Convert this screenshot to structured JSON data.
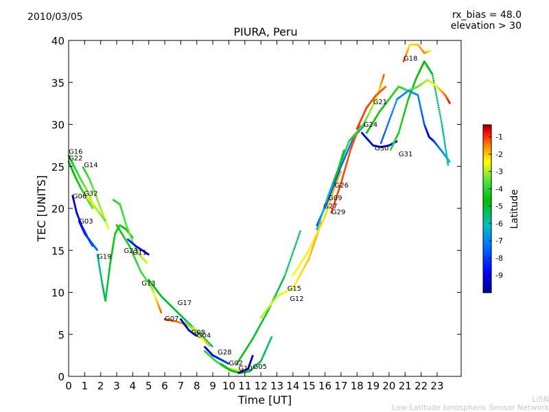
{
  "header": {
    "date": "2010/03/05",
    "params": [
      "rx_bias = 48.0",
      "elevation > 30"
    ]
  },
  "footer": {
    "lines": [
      "LISN",
      "Low-Latitude Ionospheric Sensor Network"
    ]
  },
  "colors": {
    "colormap": [
      "#00008f",
      "#0000ff",
      "#0080ff",
      "#00c0c0",
      "#00c000",
      "#40e040",
      "#ffff00",
      "#ff8000",
      "#ff0000",
      "#800000"
    ]
  },
  "chart_data": {
    "type": "scatter",
    "title": "PIURA, Peru",
    "xlabel": "Time [UT]",
    "ylabel": "TEC [UNITS]",
    "xlim": [
      0,
      24.5
    ],
    "ylim": [
      0,
      40
    ],
    "xticks": [
      "0",
      "1",
      "2",
      "3",
      "4",
      "5",
      "6",
      "7",
      "8",
      "9",
      "10",
      "11",
      "12",
      "13",
      "14",
      "15",
      "16",
      "17",
      "18",
      "19",
      "20",
      "21",
      "22",
      "23"
    ],
    "yticks": [
      "0",
      "5",
      "10",
      "15",
      "20",
      "25",
      "30",
      "35",
      "40"
    ],
    "colorbar": {
      "label": "Latitude",
      "range": [
        -10,
        -0.3
      ],
      "ticks": [
        "-9",
        "-8",
        "-7",
        "-6",
        "-5",
        "-4",
        "-3",
        "-2",
        "-1"
      ]
    },
    "grid": false,
    "series": [
      {
        "name": "G16",
        "label_at": [
          0.0,
          26.5
        ],
        "points": [
          [
            0.0,
            26.3
          ],
          [
            0.4,
            24.8
          ],
          [
            0.8,
            23.3
          ],
          [
            1.2,
            22.0
          ],
          [
            1.6,
            20.0
          ]
        ],
        "lat": [
          -5.5,
          -5.0,
          -4.6,
          -4.2,
          -3.8
        ]
      },
      {
        "name": "G22",
        "label_at": [
          0.0,
          25.7
        ],
        "points": [
          [
            0.0,
            25.6
          ],
          [
            0.4,
            23.8
          ],
          [
            0.8,
            22.3
          ],
          [
            1.2,
            21.0
          ],
          [
            1.5,
            20.0
          ]
        ],
        "lat": [
          -6.0,
          -5.6,
          -5.2,
          -4.8,
          -4.4
        ]
      },
      {
        "name": "G14",
        "label_at": [
          0.95,
          24.9
        ],
        "points": [
          [
            0.9,
            24.9
          ],
          [
            1.3,
            23.5
          ],
          [
            1.7,
            21.5
          ],
          [
            2.1,
            19.5
          ],
          [
            2.5,
            17.5
          ]
        ],
        "lat": [
          -5.0,
          -4.6,
          -4.2,
          -4.0,
          -3.6
        ]
      },
      {
        "name": "G06",
        "label_at": [
          0.25,
          21.2
        ],
        "points": [
          [
            0.25,
            21.5
          ],
          [
            0.5,
            19.5
          ],
          [
            0.8,
            18.0
          ],
          [
            1.2,
            16.5
          ],
          [
            1.5,
            15.5
          ]
        ],
        "lat": [
          -9.3,
          -9.0,
          -8.7,
          -8.5,
          -8.2
        ]
      },
      {
        "name": "G32",
        "label_at": [
          0.95,
          21.5
        ],
        "points": [
          [
            0.95,
            21.7
          ],
          [
            1.4,
            20.8
          ],
          [
            1.9,
            19.5
          ],
          [
            2.3,
            18.5
          ]
        ],
        "lat": [
          -3.6,
          -3.8,
          -4.1,
          -4.5
        ]
      },
      {
        "name": "G03",
        "label_at": [
          0.65,
          18.2
        ],
        "points": [
          [
            0.65,
            18.5
          ],
          [
            1.0,
            17.0
          ],
          [
            1.4,
            16.0
          ],
          [
            1.8,
            15.0
          ]
        ],
        "lat": [
          -9.0,
          -8.6,
          -8.3,
          -8.0
        ]
      },
      {
        "name": "G19",
        "label_at": [
          1.8,
          14.0
        ],
        "points": [
          [
            1.8,
            14.5
          ],
          [
            2.1,
            11.0
          ],
          [
            2.3,
            9.0
          ],
          [
            2.6,
            13.5
          ],
          [
            2.9,
            17.0
          ],
          [
            3.2,
            18.0
          ],
          [
            3.6,
            17.5
          ],
          [
            4.0,
            16.5
          ]
        ],
        "lat": [
          -6.5,
          -6.3,
          -6.1,
          -5.8,
          -5.4,
          -5.2,
          -5.6,
          -6.0
        ]
      },
      {
        "name": "G23",
        "label_at": [
          3.45,
          14.7
        ],
        "points": [
          [
            2.8,
            21.0
          ],
          [
            3.2,
            20.5
          ],
          [
            3.6,
            18.0
          ],
          [
            4.0,
            16.0
          ],
          [
            4.4,
            14.5
          ],
          [
            4.9,
            13.5
          ]
        ],
        "lat": [
          -5.0,
          -4.8,
          -4.5,
          -4.3,
          -4.0,
          -3.8
        ]
      },
      {
        "name": "G11",
        "label_at": [
          4.0,
          14.5
        ],
        "points": [
          [
            3.7,
            16.3
          ],
          [
            4.2,
            15.5
          ],
          [
            4.6,
            15.0
          ],
          [
            5.0,
            14.5
          ]
        ],
        "lat": [
          -8.5,
          -8.8,
          -9.2,
          -9.5
        ]
      },
      {
        "name": "G13",
        "label_at": [
          4.55,
          10.8
        ],
        "points": [
          [
            3.0,
            18.0
          ],
          [
            3.8,
            15.5
          ],
          [
            4.5,
            12.5
          ],
          [
            5.2,
            10.5
          ],
          [
            5.8,
            7.5
          ]
        ],
        "lat": [
          -5.5,
          -5.2,
          -4.8,
          -4.2,
          -2.0
        ]
      },
      {
        "name": "G17",
        "label_at": [
          6.8,
          8.5
        ],
        "points": [
          [
            5.0,
            11.5
          ],
          [
            5.8,
            9.5
          ],
          [
            6.6,
            8.0
          ],
          [
            7.4,
            6.5
          ],
          [
            8.2,
            5.0
          ],
          [
            9.0,
            3.5
          ]
        ],
        "lat": [
          -5.8,
          -5.9,
          -6.0,
          -6.1,
          -6.3,
          -6.5
        ]
      },
      {
        "name": "G07",
        "label_at": [
          6.0,
          6.6
        ],
        "points": [
          [
            6.0,
            6.8
          ],
          [
            6.8,
            6.5
          ],
          [
            7.5,
            6.0
          ],
          [
            8.0,
            5.5
          ]
        ],
        "lat": [
          -1.6,
          -2.3,
          -3.0,
          -4.0
        ]
      },
      {
        "name": "G08",
        "label_at": [
          7.65,
          5.0
        ],
        "points": [
          [
            7.0,
            6.8
          ],
          [
            7.5,
            5.5
          ],
          [
            8.0,
            4.8
          ]
        ],
        "lat": [
          -9.4,
          -9.2,
          -9.0
        ]
      },
      {
        "name": "G04",
        "label_at": [
          8.0,
          4.6
        ],
        "points": [
          [
            7.3,
            6.5
          ],
          [
            7.8,
            5.5
          ],
          [
            8.3,
            4.6
          ],
          [
            8.8,
            3.6
          ]
        ],
        "lat": [
          -4.5,
          -4.0,
          -3.5,
          -3.0
        ]
      },
      {
        "name": "G28",
        "label_at": [
          9.3,
          2.6
        ],
        "points": [
          [
            8.5,
            3.5
          ],
          [
            9.0,
            2.5
          ],
          [
            9.5,
            2.0
          ],
          [
            10.0,
            1.5
          ]
        ],
        "lat": [
          -9.2,
          -8.9,
          -8.6,
          -8.3
        ]
      },
      {
        "name": "G02",
        "label_at": [
          10.0,
          1.3
        ],
        "points": [
          [
            8.5,
            3.0
          ],
          [
            9.2,
            1.8
          ],
          [
            9.8,
            1.0
          ],
          [
            10.3,
            0.8
          ],
          [
            11.0,
            0.6
          ]
        ],
        "lat": [
          -5.0,
          -4.8,
          -4.5,
          -4.0,
          -3.5
        ]
      },
      {
        "name": "G10",
        "label_at": [
          10.6,
          0.7
        ],
        "points": [
          [
            9.5,
            1.5
          ],
          [
            10.1,
            0.7
          ],
          [
            10.7,
            0.4
          ],
          [
            11.3,
            0.6
          ],
          [
            12.0,
            1.8
          ],
          [
            12.7,
            4.8
          ]
        ],
        "lat": [
          -5.5,
          -5.7,
          -5.9,
          -6.1,
          -6.2,
          -6.4
        ]
      },
      {
        "name": "G05",
        "label_at": [
          11.5,
          0.9
        ],
        "points": [
          [
            10.6,
            0.4
          ],
          [
            11.2,
            0.9
          ],
          [
            11.5,
            2.5
          ]
        ],
        "lat": [
          -9.6,
          -9.5,
          -9.4
        ]
      },
      {
        "name": "G15",
        "label_at": [
          13.65,
          10.2
        ],
        "points": [
          [
            10.5,
            1.5
          ],
          [
            11.5,
            4.5
          ],
          [
            12.5,
            8.0
          ],
          [
            13.5,
            12.0
          ],
          [
            14.5,
            17.5
          ]
        ],
        "lat": [
          -5.8,
          -5.9,
          -6.0,
          -6.1,
          -6.2
        ]
      },
      {
        "name": "G12",
        "label_at": [
          13.8,
          9.0
        ],
        "points": [
          [
            12.0,
            7.0
          ],
          [
            13.0,
            9.5
          ],
          [
            14.0,
            10.5
          ],
          [
            15.0,
            14.0
          ],
          [
            15.8,
            18.5
          ]
        ],
        "lat": [
          -4.0,
          -3.8,
          -3.5,
          -3.0,
          -2.5
        ]
      },
      {
        "name": "G26",
        "label_at": [
          16.6,
          22.5
        ],
        "points": [
          [
            14.0,
            12.0
          ],
          [
            15.0,
            15.0
          ],
          [
            16.0,
            19.0
          ],
          [
            16.6,
            22.5
          ],
          [
            17.0,
            24.5
          ]
        ],
        "lat": [
          -3.5,
          -3.4,
          -3.2,
          -3.0,
          -2.8
        ]
      },
      {
        "name": "G09",
        "label_at": [
          16.2,
          21.0
        ],
        "points": [
          [
            15.5,
            18.0
          ],
          [
            16.2,
            21.0
          ],
          [
            17.0,
            25.0
          ],
          [
            17.8,
            28.5
          ],
          [
            18.5,
            30.0
          ]
        ],
        "lat": [
          -8.5,
          -8.3,
          -8.1,
          -7.9,
          -7.5
        ]
      },
      {
        "name": "G27",
        "label_at": [
          15.9,
          20.0
        ],
        "points": [
          [
            15.5,
            17.5
          ],
          [
            16.2,
            21.5
          ],
          [
            16.8,
            24.5
          ],
          [
            17.2,
            27.0
          ]
        ],
        "lat": [
          -7.0,
          -6.8,
          -6.5,
          -6.2
        ]
      },
      {
        "name": "G29",
        "label_at": [
          16.4,
          19.3
        ],
        "points": [
          [
            16.4,
            19.5
          ],
          [
            17.0,
            23.0
          ],
          [
            17.6,
            27.0
          ],
          [
            18.2,
            30.0
          ]
        ],
        "lat": [
          -1.8,
          -1.9,
          -2.0,
          -2.2
        ]
      },
      {
        "name": "G24",
        "label_at": [
          18.4,
          29.7
        ],
        "points": [
          [
            16.5,
            23.0
          ],
          [
            17.5,
            28.0
          ],
          [
            18.4,
            30.0
          ],
          [
            19.2,
            33.0
          ],
          [
            19.7,
            36.0
          ]
        ],
        "lat": [
          -5.8,
          -5.2,
          -4.6,
          -3.9,
          -2.0
        ]
      },
      {
        "name": "G21",
        "label_at": [
          19.0,
          32.4
        ],
        "points": [
          [
            18.0,
            29.5
          ],
          [
            18.6,
            32.0
          ],
          [
            19.2,
            33.5
          ],
          [
            19.8,
            34.5
          ]
        ],
        "lat": [
          -1.8,
          -1.9,
          -2.0,
          -2.2
        ]
      },
      {
        "name": "G30",
        "label_at": [
          19.1,
          26.9
        ],
        "points": [
          [
            18.3,
            29.0
          ],
          [
            19.0,
            27.5
          ],
          [
            19.5,
            27.3
          ],
          [
            20.0,
            27.5
          ],
          [
            20.5,
            28.0
          ]
        ],
        "lat": [
          -9.3,
          -9.2,
          -9.1,
          -9.0,
          -8.9
        ]
      },
      {
        "name": "G31",
        "label_at": [
          20.6,
          26.2
        ],
        "points": [
          [
            20.1,
            27.0
          ],
          [
            20.6,
            29.0
          ],
          [
            21.2,
            33.0
          ],
          [
            21.7,
            35.5
          ],
          [
            22.2,
            37.5
          ],
          [
            22.7,
            36.0
          ],
          [
            23.3,
            30.0
          ],
          [
            23.7,
            25.0
          ]
        ],
        "lat": [
          -5.0,
          -5.2,
          -5.4,
          -5.5,
          -5.7,
          -6.0,
          -6.5,
          -7.0
        ]
      },
      {
        "name": "G18",
        "label_at": [
          20.9,
          37.6
        ],
        "points": [
          [
            20.9,
            37.5
          ],
          [
            21.3,
            39.5
          ],
          [
            21.8,
            39.5
          ],
          [
            22.2,
            38.5
          ],
          [
            22.6,
            38.8
          ]
        ],
        "lat": [
          -2.0,
          -3.3,
          -3.0,
          -2.5,
          -3.5
        ]
      }
    ],
    "extra_traces": [
      {
        "points": [
          [
            18.6,
            29.0
          ],
          [
            19.4,
            31.5
          ],
          [
            20.0,
            33.0
          ],
          [
            20.6,
            34.5
          ],
          [
            21.2,
            34.0
          ],
          [
            21.8,
            34.5
          ],
          [
            22.4,
            35.3
          ],
          [
            23.0,
            34.5
          ],
          [
            23.5,
            33.5
          ],
          [
            23.8,
            32.5
          ]
        ],
        "lat": [
          -5.6,
          -5.4,
          -5.2,
          -5.0,
          -4.8,
          -4.4,
          -4.0,
          -3.4,
          -2.3,
          -1.5
        ]
      },
      {
        "points": [
          [
            19.5,
            27.8
          ],
          [
            20.5,
            33.0
          ],
          [
            21.2,
            34.0
          ],
          [
            21.8,
            33.5
          ],
          [
            22.2,
            30.0
          ],
          [
            22.5,
            28.5
          ],
          [
            22.8,
            28.0
          ],
          [
            23.3,
            26.8
          ],
          [
            23.8,
            25.5
          ]
        ],
        "lat": [
          -8.5,
          -7.7,
          -7.5,
          -7.6,
          -8.2,
          -9.3,
          -8.5,
          -7.5,
          -6.8
        ]
      }
    ]
  }
}
